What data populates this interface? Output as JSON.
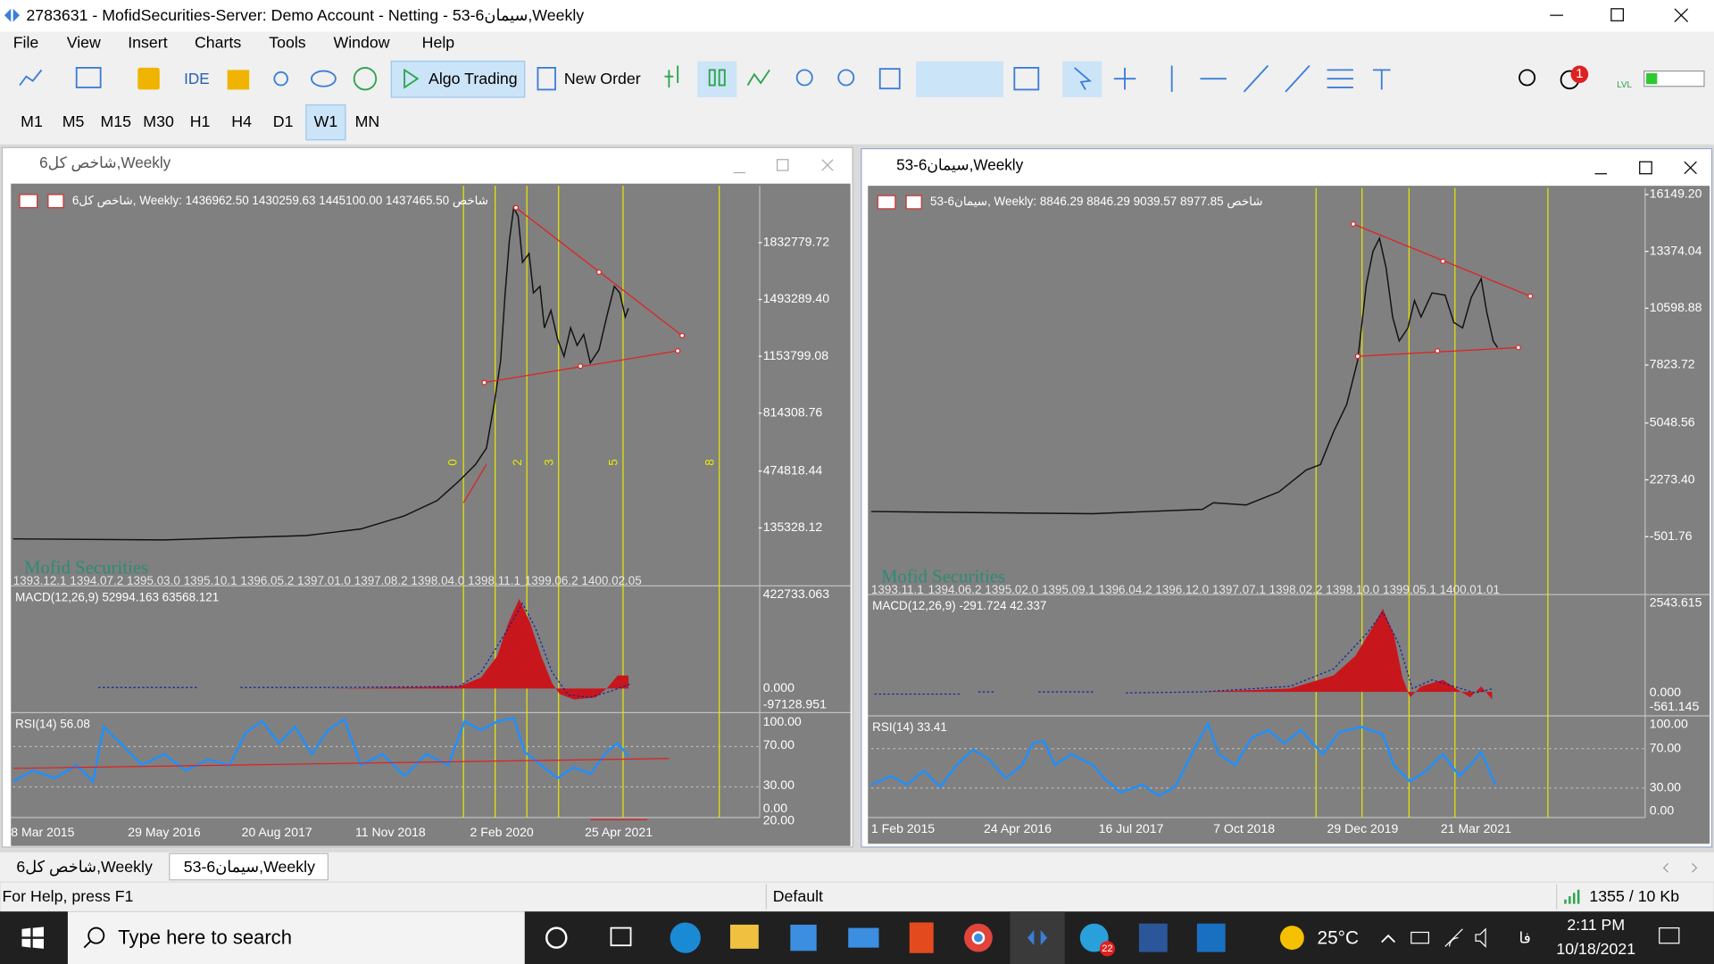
{
  "window": {
    "title": "2783631 - MofidSecurities-Server: Demo Account - Netting - 53-6سیمان,Weekly"
  },
  "menu": [
    "File",
    "View",
    "Insert",
    "Charts",
    "Tools",
    "Window",
    "Help"
  ],
  "toolbar": {
    "ide": "IDE",
    "algo_trading": "Algo Trading",
    "new_order": "New Order",
    "notifications": "1",
    "lvl": "LVL"
  },
  "timeframes": [
    "M1",
    "M5",
    "M15",
    "M30",
    "H1",
    "H4",
    "D1",
    "W1",
    "MN"
  ],
  "active_timeframe": 7,
  "charts": [
    {
      "title": "6شاخص کل,Weekly",
      "header": "6شاخص کل, Weekly:  1436962.50 1430259.63 1445100.00 1437465.50  شاخص",
      "price_labels": [
        "1832779.72",
        "1493289.40",
        "1153799.08",
        "814308.76",
        "474818.44",
        "135328.12"
      ],
      "watermark": "Mofid Securities",
      "top_dates": [
        "1393.12.1",
        "1394.07.2",
        "1395.03.0",
        "1395.10.1",
        "1396.05.2",
        "1397.01.0",
        "1397.08.2",
        "1398.04.0",
        "1398.11.1",
        "1399.06.2",
        "1400.02.05"
      ],
      "wave_labels": [
        "0",
        "2",
        "3",
        "5",
        "8"
      ],
      "macd": {
        "label": "MACD(12,26,9) 52994.163 63568.121",
        "levels": [
          "422733.063",
          "0.000",
          "-97128.951"
        ]
      },
      "rsi": {
        "label": "RSI(14) 56.08",
        "levels": [
          "100.00",
          "70.00",
          "30.00",
          "0.00",
          "20.00"
        ]
      },
      "dates": [
        "8 Mar 2015",
        "29 May 2016",
        "20 Aug 2017",
        "11 Nov 2018",
        "2 Feb 2020",
        "25 Apr 2021"
      ]
    },
    {
      "title": "53-6سیمان,Weekly",
      "header": "53-6سیمان, Weekly:  8846.29 8846.29 9039.57 8977.85  شاخص",
      "price_labels": [
        "16149.20",
        "13374.04",
        "10598.88",
        "7823.72",
        "5048.56",
        "2273.40",
        "-501.76"
      ],
      "watermark": "Mofid Securities",
      "top_dates": [
        "1393.11.1",
        "1394.06.2",
        "1395.02.0",
        "1395.09.1",
        "1396.04.2",
        "1396.12.0",
        "1397.07.1",
        "1398.02.2",
        "1398.10.0",
        "1399.05.1",
        "1400.01.01"
      ],
      "macd": {
        "label": "MACD(12,26,9) -291.724 42.337",
        "levels": [
          "2543.615",
          "0.000",
          "-561.145"
        ]
      },
      "rsi": {
        "label": "RSI(14) 33.41",
        "levels": [
          "100.00",
          "70.00",
          "30.00",
          "0.00"
        ]
      },
      "dates": [
        "1 Feb 2015",
        "24 Apr 2016",
        "16 Jul 2017",
        "7 Oct 2018",
        "29 Dec 2019",
        "21 Mar 2021"
      ]
    }
  ],
  "tabs": [
    "6شاخص کل,Weekly",
    "53-6سیمان,Weekly"
  ],
  "status": {
    "help": "For Help, press F1",
    "profile": "Default",
    "traffic": "1355 / 10 Kb"
  },
  "taskbar": {
    "search": "Type here to search",
    "telegram_badge": "22",
    "temperature": "25°C",
    "language": "فا",
    "time": "2:11 PM",
    "date": "10/18/2021"
  }
}
